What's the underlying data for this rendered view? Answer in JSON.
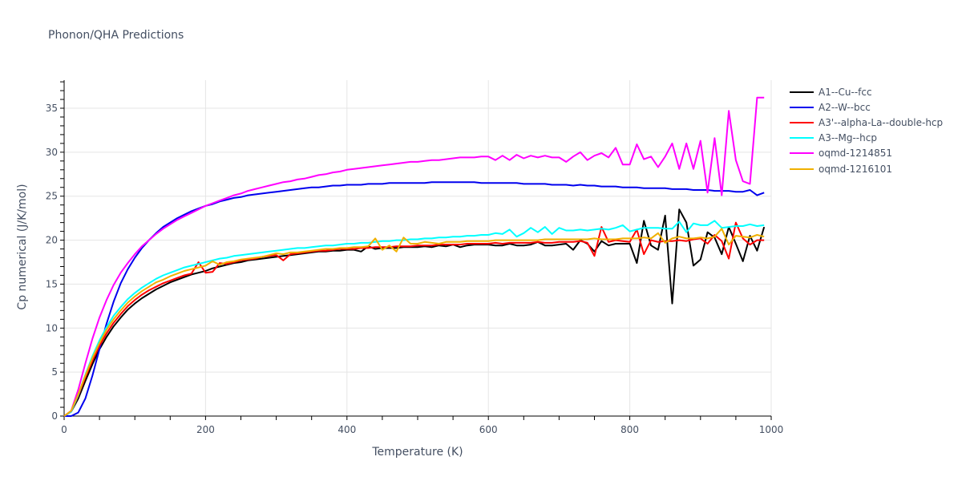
{
  "chart_data": {
    "type": "line",
    "title": "Phonon/QHA Predictions",
    "xlabel": "Temperature (K)",
    "ylabel": "Cp numerical (J/K/mol)",
    "xlim": [
      0,
      1000
    ],
    "ylim": [
      0,
      38
    ],
    "x_ticks": [
      0,
      200,
      400,
      600,
      800,
      1000
    ],
    "y_ticks": [
      0,
      5,
      10,
      15,
      20,
      25,
      30,
      35
    ],
    "grid": true,
    "legend_position": "right",
    "x": [
      0,
      10,
      20,
      30,
      40,
      50,
      60,
      70,
      80,
      90,
      100,
      110,
      120,
      130,
      140,
      150,
      160,
      170,
      180,
      190,
      200,
      210,
      220,
      230,
      240,
      250,
      260,
      270,
      280,
      290,
      300,
      310,
      320,
      330,
      340,
      350,
      360,
      370,
      380,
      390,
      400,
      410,
      420,
      430,
      440,
      450,
      460,
      470,
      480,
      490,
      500,
      510,
      520,
      530,
      540,
      550,
      560,
      570,
      580,
      590,
      600,
      610,
      620,
      630,
      640,
      650,
      660,
      670,
      680,
      690,
      700,
      710,
      720,
      730,
      740,
      750,
      760,
      770,
      780,
      790,
      800,
      810,
      820,
      830,
      840,
      850,
      860,
      870,
      880,
      890,
      900,
      910,
      920,
      930,
      940,
      950,
      960,
      970,
      980,
      990
    ],
    "series": [
      {
        "name": "A1--Cu--fcc",
        "color": "#000000",
        "values": [
          0,
          0.5,
          2.0,
          4.0,
          5.9,
          7.6,
          9.0,
          10.2,
          11.2,
          12.1,
          12.8,
          13.4,
          13.9,
          14.4,
          14.8,
          15.2,
          15.5,
          15.8,
          16.1,
          16.3,
          16.5,
          16.8,
          17.0,
          17.2,
          17.4,
          17.5,
          17.7,
          17.8,
          17.9,
          18.0,
          18.1,
          18.2,
          18.3,
          18.4,
          18.5,
          18.6,
          18.7,
          18.7,
          18.8,
          18.8,
          18.9,
          18.9,
          18.7,
          19.3,
          19.0,
          19.1,
          19.1,
          19.1,
          19.2,
          19.2,
          19.2,
          19.3,
          19.2,
          19.4,
          19.3,
          19.5,
          19.2,
          19.4,
          19.5,
          19.5,
          19.5,
          19.4,
          19.4,
          19.6,
          19.4,
          19.4,
          19.5,
          19.8,
          19.4,
          19.4,
          19.5,
          19.6,
          18.9,
          20.0,
          19.6,
          18.7,
          19.9,
          19.4,
          19.6,
          19.6,
          19.6,
          17.4,
          22.2,
          19.4,
          18.9,
          22.8,
          12.8,
          23.5,
          22.0,
          17.1,
          17.8,
          20.9,
          20.3,
          18.4,
          21.5,
          19.6,
          17.6,
          20.5,
          18.8,
          21.5
        ]
      },
      {
        "name": "A2--W--bcc",
        "color": "#0000ee",
        "values": [
          0,
          0,
          0.4,
          2.0,
          4.6,
          7.6,
          10.5,
          13.0,
          15.1,
          16.7,
          18.0,
          19.1,
          20.0,
          20.8,
          21.5,
          22.0,
          22.5,
          22.9,
          23.3,
          23.6,
          23.9,
          24.1,
          24.4,
          24.6,
          24.8,
          24.9,
          25.1,
          25.2,
          25.3,
          25.4,
          25.5,
          25.6,
          25.7,
          25.8,
          25.9,
          26.0,
          26.0,
          26.1,
          26.2,
          26.2,
          26.3,
          26.3,
          26.3,
          26.4,
          26.4,
          26.4,
          26.5,
          26.5,
          26.5,
          26.5,
          26.5,
          26.5,
          26.6,
          26.6,
          26.6,
          26.6,
          26.6,
          26.6,
          26.6,
          26.5,
          26.5,
          26.5,
          26.5,
          26.5,
          26.5,
          26.4,
          26.4,
          26.4,
          26.4,
          26.3,
          26.3,
          26.3,
          26.2,
          26.3,
          26.2,
          26.2,
          26.1,
          26.1,
          26.1,
          26.0,
          26.0,
          26.0,
          25.9,
          25.9,
          25.9,
          25.9,
          25.8,
          25.8,
          25.8,
          25.7,
          25.7,
          25.7,
          25.6,
          25.6,
          25.6,
          25.5,
          25.5,
          25.7,
          25.1,
          25.4
        ]
      },
      {
        "name": "A3'--alpha-La--double-hcp",
        "color": "#ff0000",
        "values": [
          0,
          0.5,
          2.3,
          4.4,
          6.3,
          8.0,
          9.4,
          10.6,
          11.6,
          12.5,
          13.2,
          13.8,
          14.3,
          14.7,
          15.1,
          15.4,
          15.7,
          16.0,
          16.2,
          17.5,
          16.3,
          16.4,
          17.4,
          17.3,
          17.5,
          17.7,
          17.8,
          17.9,
          18.1,
          18.2,
          18.3,
          17.7,
          18.4,
          18.5,
          18.6,
          18.7,
          18.8,
          18.8,
          18.9,
          19.0,
          19.0,
          19.0,
          19.1,
          19.1,
          19.2,
          19.2,
          19.2,
          19.3,
          19.3,
          19.3,
          19.4,
          19.4,
          19.4,
          19.5,
          19.5,
          19.5,
          19.5,
          19.6,
          19.6,
          19.6,
          19.6,
          19.7,
          19.6,
          19.7,
          19.7,
          19.7,
          19.7,
          19.8,
          19.7,
          19.7,
          19.8,
          19.8,
          19.8,
          19.9,
          19.7,
          18.2,
          21.5,
          19.8,
          20.0,
          19.9,
          19.8,
          21.2,
          18.4,
          20.0,
          19.8,
          19.9,
          19.9,
          20.0,
          19.9,
          20.1,
          20.2,
          19.6,
          20.6,
          19.9,
          17.9,
          22.0,
          20.2,
          19.5,
          20.0,
          20.0
        ]
      },
      {
        "name": "A3--Mg--hcp",
        "color": "#00ffff",
        "values": [
          0,
          0.5,
          2.4,
          4.7,
          6.8,
          8.6,
          10.1,
          11.4,
          12.4,
          13.3,
          14.0,
          14.6,
          15.1,
          15.6,
          16.0,
          16.3,
          16.6,
          16.9,
          17.1,
          17.3,
          17.5,
          17.7,
          17.9,
          18.0,
          18.2,
          18.3,
          18.4,
          18.5,
          18.6,
          18.7,
          18.8,
          18.9,
          19.0,
          19.1,
          19.1,
          19.2,
          19.3,
          19.4,
          19.4,
          19.5,
          19.6,
          19.6,
          19.7,
          19.7,
          19.8,
          19.9,
          19.9,
          20.0,
          20.0,
          20.1,
          20.1,
          20.2,
          20.2,
          20.3,
          20.3,
          20.4,
          20.4,
          20.5,
          20.5,
          20.6,
          20.6,
          20.8,
          20.7,
          21.2,
          20.4,
          20.8,
          21.4,
          20.9,
          21.5,
          20.7,
          21.4,
          21.1,
          21.1,
          21.2,
          21.1,
          21.2,
          21.3,
          21.2,
          21.4,
          21.7,
          21.0,
          21.2,
          21.4,
          21.4,
          21.4,
          21.3,
          21.3,
          22.1,
          20.9,
          21.9,
          21.7,
          21.7,
          22.2,
          21.4,
          21.5,
          21.6,
          21.6,
          21.8,
          21.6,
          21.7
        ]
      },
      {
        "name": "oqmd-1214851",
        "color": "#ff00ff",
        "values": [
          0,
          0.6,
          3.0,
          6.0,
          8.8,
          11.2,
          13.2,
          14.9,
          16.3,
          17.4,
          18.4,
          19.3,
          20.0,
          20.7,
          21.3,
          21.8,
          22.3,
          22.7,
          23.1,
          23.5,
          23.9,
          24.2,
          24.5,
          24.8,
          25.1,
          25.3,
          25.6,
          25.8,
          26.0,
          26.2,
          26.4,
          26.6,
          26.7,
          26.9,
          27.0,
          27.2,
          27.4,
          27.5,
          27.7,
          27.8,
          28.0,
          28.1,
          28.2,
          28.3,
          28.4,
          28.5,
          28.6,
          28.7,
          28.8,
          28.9,
          28.9,
          29.0,
          29.1,
          29.1,
          29.2,
          29.3,
          29.4,
          29.4,
          29.4,
          29.5,
          29.5,
          29.1,
          29.6,
          29.1,
          29.7,
          29.3,
          29.6,
          29.4,
          29.6,
          29.4,
          29.4,
          28.9,
          29.5,
          30.0,
          29.1,
          29.6,
          29.9,
          29.4,
          30.5,
          28.6,
          28.6,
          30.9,
          29.2,
          29.5,
          28.3,
          29.5,
          31.0,
          28.1,
          31.0,
          28.1,
          31.3,
          25.4,
          31.6,
          25.1,
          34.7,
          29.1,
          26.7,
          26.4,
          36.2,
          36.2
        ]
      },
      {
        "name": "oqmd-1216101",
        "color": "#f0b000",
        "values": [
          0,
          0.6,
          2.5,
          4.6,
          6.6,
          8.3,
          9.8,
          11.0,
          12.0,
          12.9,
          13.6,
          14.2,
          14.7,
          15.2,
          15.5,
          15.9,
          16.2,
          16.5,
          16.7,
          16.9,
          17.1,
          17.6,
          17.2,
          17.5,
          17.6,
          17.8,
          17.9,
          18.0,
          18.1,
          18.3,
          18.5,
          18.4,
          18.6,
          18.6,
          18.7,
          18.8,
          18.9,
          19.0,
          19.0,
          19.1,
          19.1,
          19.2,
          19.2,
          19.3,
          20.2,
          18.9,
          19.4,
          18.7,
          20.3,
          19.6,
          19.6,
          19.8,
          19.7,
          19.6,
          19.8,
          19.8,
          19.8,
          19.9,
          19.9,
          19.9,
          19.9,
          20.0,
          20.0,
          20.0,
          20.0,
          20.0,
          20.0,
          20.0,
          20.1,
          20.1,
          20.1,
          20.1,
          20.1,
          20.1,
          20.1,
          20.2,
          20.1,
          20.1,
          20.1,
          20.2,
          20.2,
          20.2,
          20.3,
          20.2,
          20.8,
          19.7,
          20.2,
          20.4,
          20.2,
          20.2,
          20.3,
          20.2,
          20.4,
          21.3,
          19.5,
          20.5,
          20.4,
          20.3,
          20.6,
          20.4
        ]
      }
    ]
  },
  "legend": [
    "A1--Cu--fcc",
    "A2--W--bcc",
    "A3'--alpha-La--double-hcp",
    "A3--Mg--hcp",
    "oqmd-1214851",
    "oqmd-1216101"
  ]
}
